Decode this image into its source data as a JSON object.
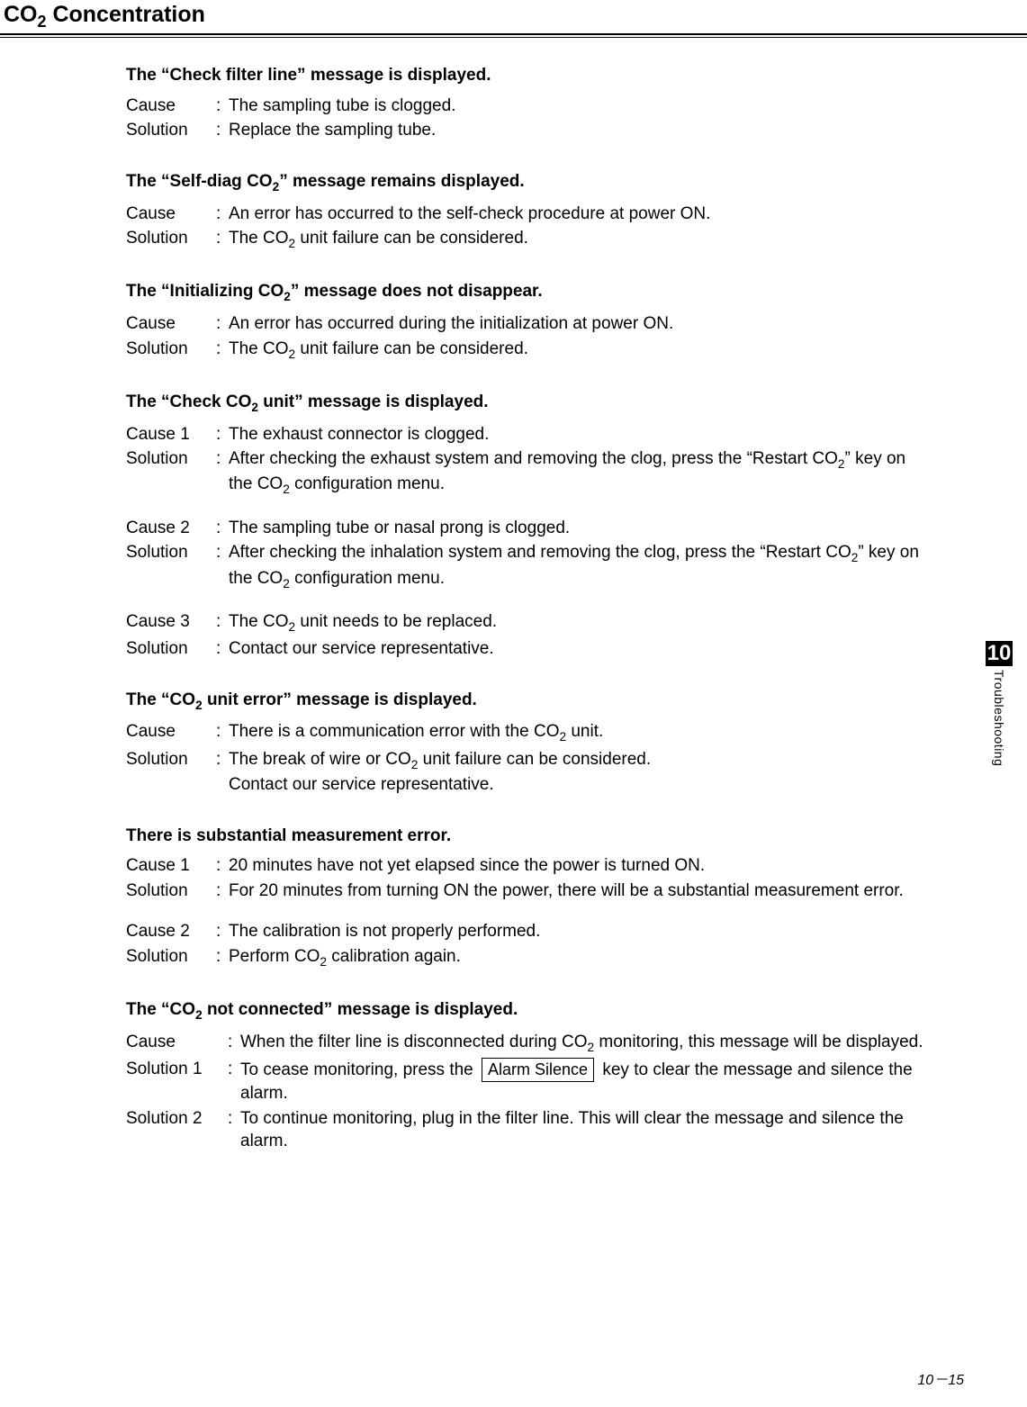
{
  "page_title_pre": "CO",
  "page_title_sub": "2",
  "page_title_post": " Concentration",
  "chapter_tab_number": "10",
  "chapter_tab_label": "Troubleshooting",
  "footer_text": "10－15",
  "sections": [
    {
      "title_parts": [
        "The “Check filter line” message is displayed."
      ],
      "blocks": [
        {
          "rows": [
            {
              "label": "Cause",
              "text": "The sampling tube is clogged."
            },
            {
              "label": "Solution",
              "text": "Replace the sampling tube."
            }
          ]
        }
      ]
    },
    {
      "title_parts": [
        "The “Self-diag CO",
        "2",
        "” message remains displayed."
      ],
      "blocks": [
        {
          "rows": [
            {
              "label": "Cause",
              "text": "An error has occurred to the self-check procedure at power ON."
            },
            {
              "label": "Solution",
              "text_parts": [
                "The CO",
                "2",
                " unit failure can be considered."
              ]
            }
          ]
        }
      ]
    },
    {
      "title_parts": [
        "The “Initializing CO",
        "2",
        "” message does not disappear."
      ],
      "blocks": [
        {
          "rows": [
            {
              "label": "Cause",
              "text": "An error has occurred during the initialization at power ON."
            },
            {
              "label": "Solution",
              "text_parts": [
                "The CO",
                "2",
                " unit failure can be considered."
              ]
            }
          ]
        }
      ]
    },
    {
      "title_parts": [
        "The “Check CO",
        "2",
        " unit” message is displayed."
      ],
      "blocks": [
        {
          "rows": [
            {
              "label": "Cause 1",
              "text": "The exhaust connector is clogged."
            },
            {
              "label": "Solution",
              "text_parts": [
                "After checking the exhaust system and removing the clog, press the “Restart CO",
                "2",
                "” key on the CO",
                "2",
                " configuration menu."
              ]
            }
          ]
        },
        {
          "rows": [
            {
              "label": "Cause 2",
              "text": "The sampling tube or nasal prong is clogged."
            },
            {
              "label": "Solution",
              "text_parts": [
                "After checking the inhalation system and removing the clog, press the “Restart CO",
                "2",
                "” key on the CO",
                "2",
                " configuration menu."
              ]
            }
          ]
        },
        {
          "rows": [
            {
              "label": "Cause 3",
              "text_parts": [
                "The CO",
                "2",
                " unit needs to be replaced."
              ]
            },
            {
              "label": "Solution",
              "text": "Contact our service representative."
            }
          ]
        }
      ]
    },
    {
      "title_parts": [
        "The “CO",
        "2",
        " unit error” message is displayed."
      ],
      "blocks": [
        {
          "rows": [
            {
              "label": "Cause",
              "text_parts": [
                "There is a communication error with the CO",
                "2",
                " unit."
              ]
            },
            {
              "label": "Solution",
              "text_parts": [
                "The break of wire or CO",
                "2",
                " unit failure can be considered."
              ],
              "extra_line": "Contact our service representative."
            }
          ]
        }
      ]
    },
    {
      "title_parts": [
        "There is substantial measurement error."
      ],
      "blocks": [
        {
          "rows": [
            {
              "label": "Cause 1",
              "text": "20 minutes have not yet elapsed since the power is turned ON."
            },
            {
              "label": "Solution",
              "text": "For 20 minutes from turning ON the power, there will be a substantial measurement error."
            }
          ]
        },
        {
          "rows": [
            {
              "label": "Cause 2",
              "text": "The calibration is not properly performed."
            },
            {
              "label": "Solution",
              "text_parts": [
                "Perform CO",
                "2",
                " calibration again."
              ]
            }
          ]
        }
      ]
    },
    {
      "title_parts": [
        "The “CO",
        "2",
        " not connected” message is displayed."
      ],
      "label_wide": true,
      "blocks": [
        {
          "rows": [
            {
              "label": "Cause",
              "text_parts": [
                "When the filter line is disconnected during CO",
                "2",
                " monitoring, this message will be displayed."
              ]
            },
            {
              "label": "Solution 1",
              "key_row": true,
              "text_before": "To cease monitoring, press the ",
              "key_label": "Alarm Silence",
              "text_after": " key to clear the message and silence the alarm."
            },
            {
              "label": "Solution 2",
              "text": "To continue monitoring, plug in the filter line.   This will clear the message and silence the alarm."
            }
          ]
        }
      ]
    }
  ]
}
